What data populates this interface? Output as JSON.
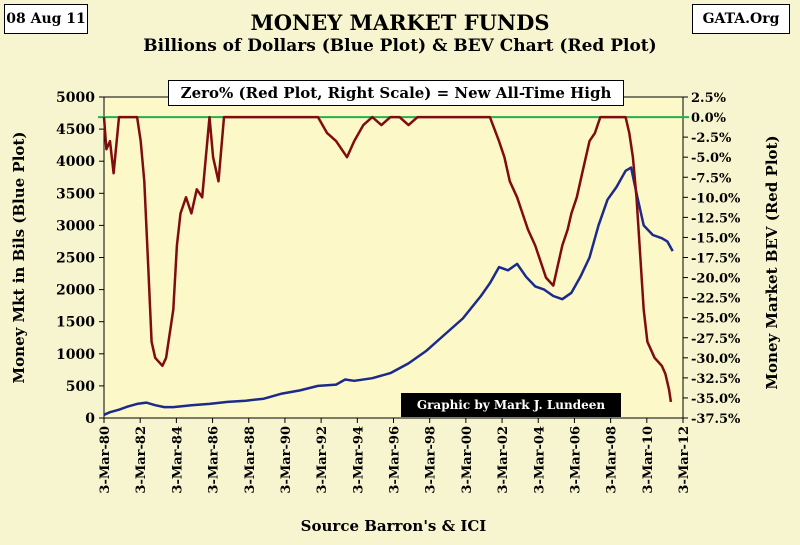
{
  "header": {
    "date": "08 Aug 11",
    "source_tag": "GATA.Org",
    "title": "MONEY MARKET FUNDS",
    "subtitle": "Billions of Dollars (Blue Plot) & BEV Chart (Red Plot)"
  },
  "annotations": {
    "zero_note": "Zero% (Red Plot, Right Scale) = New All-Time High",
    "credit": "Graphic by Mark J. Lundeen"
  },
  "chart_data": {
    "type": "line",
    "xlabel": "Source Barron's & ICI",
    "ylabel": "Money Mkt in Bils (Blue Plot)",
    "y2label": "Money Market BEV (Red Plot)",
    "xlim": [
      1980.17,
      2012.17
    ],
    "ylim": [
      0,
      5000
    ],
    "y2lim": [
      -37.5,
      2.5
    ],
    "x_ticks": [
      "3-Mar-80",
      "3-Mar-82",
      "3-Mar-84",
      "3-Mar-86",
      "3-Mar-88",
      "3-Mar-90",
      "3-Mar-92",
      "3-Mar-94",
      "3-Mar-96",
      "3-Mar-98",
      "3-Mar-00",
      "3-Mar-02",
      "3-Mar-04",
      "3-Mar-06",
      "3-Mar-08",
      "3-Mar-10",
      "3-Mar-12"
    ],
    "y_ticks": [
      "0",
      "500",
      "1000",
      "1500",
      "2000",
      "2500",
      "3000",
      "3500",
      "4000",
      "4500",
      "5000"
    ],
    "y2_ticks": [
      "2.5%",
      "0.0%",
      "-2.5%",
      "-5.0%",
      "-7.5%",
      "-10.0%",
      "-12.5%",
      "-15.0%",
      "-17.5%",
      "-20.0%",
      "-22.5%",
      "-25.0%",
      "-27.5%",
      "-30.0%",
      "-32.5%",
      "-35.0%",
      "-37.5%"
    ],
    "reference_line": 0,
    "grid": false,
    "colors": {
      "blue": "#1c2a8c",
      "red": "#7f0d0d",
      "reference": "#22b14c",
      "plot_bg": "#fdf8c8"
    },
    "series": [
      {
        "axis": "left",
        "x": [
          1980.17,
          1980.5,
          1981,
          1981.5,
          1982,
          1982.5,
          1983,
          1983.5,
          1984,
          1985,
          1986,
          1987,
          1988,
          1989,
          1990,
          1991,
          1992,
          1993,
          1993.5,
          1994,
          1995,
          1996,
          1997,
          1998,
          1999,
          2000,
          2001,
          2001.5,
          2002,
          2002.5,
          2003,
          2003.5,
          2004,
          2004.5,
          2005,
          2005.5,
          2006,
          2006.5,
          2007,
          2007.5,
          2008,
          2008.5,
          2009,
          2009.3,
          2009.6,
          2010,
          2010.5,
          2011,
          2011.3,
          2011.6
        ],
        "y": [
          50,
          90,
          130,
          180,
          220,
          240,
          200,
          170,
          170,
          200,
          220,
          250,
          270,
          300,
          380,
          430,
          500,
          520,
          600,
          580,
          620,
          700,
          850,
          1050,
          1300,
          1550,
          1900,
          2100,
          2350,
          2300,
          2400,
          2200,
          2050,
          2000,
          1900,
          1850,
          1950,
          2200,
          2500,
          3000,
          3400,
          3600,
          3850,
          3900,
          3500,
          3000,
          2850,
          2800,
          2750,
          2600
        ]
      },
      {
        "axis": "right",
        "x": [
          1980.17,
          1980.3,
          1980.5,
          1980.7,
          1981,
          1981.2,
          1981.4,
          1981.6,
          1981.8,
          1982,
          1982.2,
          1982.4,
          1982.6,
          1982.8,
          1983,
          1983.2,
          1983.4,
          1983.6,
          1983.8,
          1984,
          1984.2,
          1984.4,
          1984.7,
          1985,
          1985.3,
          1985.6,
          1986,
          1986.2,
          1986.5,
          1986.8,
          1987,
          1987.2,
          1987.5,
          1988,
          1988.5,
          1989,
          1989.5,
          1990,
          1990.5,
          1991,
          1991.5,
          1992,
          1992.5,
          1993,
          1993.3,
          1993.6,
          1994,
          1994.5,
          1995,
          1995.5,
          1996,
          1996.5,
          1997,
          1997.5,
          1998,
          1998.5,
          1999,
          1999.5,
          2000,
          2000.5,
          2001,
          2001.5,
          2002,
          2002.3,
          2002.6,
          2003,
          2003.3,
          2003.6,
          2004,
          2004.3,
          2004.6,
          2005,
          2005.2,
          2005.5,
          2005.8,
          2006,
          2006.3,
          2006.6,
          2007,
          2007.3,
          2007.6,
          2008,
          2008.3,
          2008.6,
          2009,
          2009.2,
          2009.4,
          2009.6,
          2009.8,
          2010,
          2010.2,
          2010.4,
          2010.6,
          2010.8,
          2011,
          2011.2,
          2011.4,
          2011.5
        ],
        "y": [
          0,
          -4,
          -3,
          -7,
          0,
          0,
          0,
          0,
          0,
          0,
          -3,
          -8,
          -18,
          -28,
          -30,
          -30.5,
          -31,
          -30,
          -27,
          -24,
          -16,
          -12,
          -10,
          -12,
          -9,
          -10,
          0,
          -5,
          -8,
          0,
          0,
          0,
          0,
          0,
          0,
          0,
          0,
          0,
          0,
          0,
          0,
          0,
          -2,
          -3,
          -4,
          -5,
          -3,
          -1,
          0,
          -1,
          0,
          0,
          -1,
          0,
          0,
          0,
          0,
          0,
          0,
          0,
          0,
          0,
          -3,
          -5,
          -8,
          -10,
          -12,
          -14,
          -16,
          -18,
          -20,
          -21,
          -19,
          -16,
          -14,
          -12,
          -10,
          -7,
          -3,
          -2,
          0,
          0,
          0,
          0,
          0,
          -2,
          -5,
          -10,
          -17,
          -24,
          -28,
          -29,
          -30,
          -30.5,
          -31,
          -32,
          -34,
          -35.5
        ]
      }
    ]
  }
}
